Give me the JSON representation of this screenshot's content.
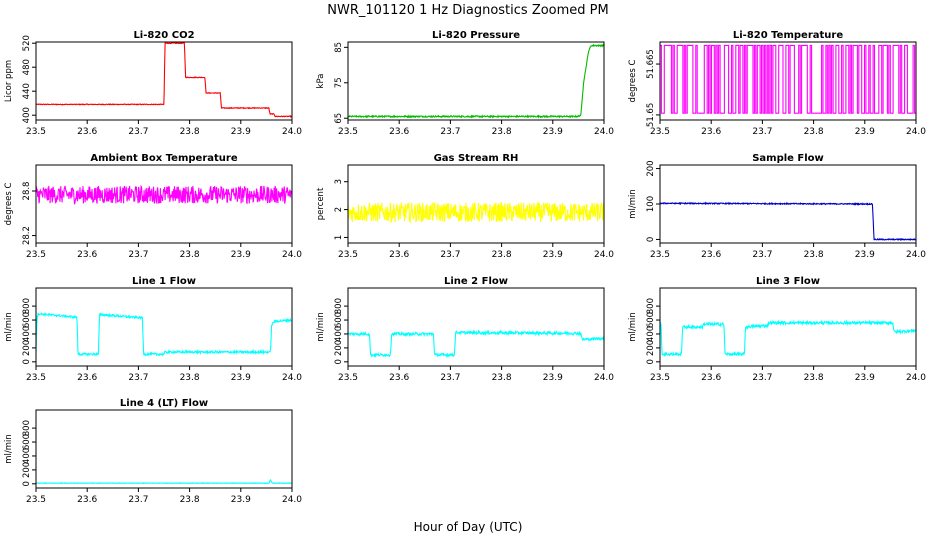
{
  "title": "NWR_101120  1 Hz Diagnostics Zoomed PM",
  "xlabel": "Hour of Day (UTC)",
  "chart_data": [
    {
      "type": "line",
      "title": "Li-820 CO2",
      "ylabel": "Licor ppm",
      "color": "#ff0000",
      "xlim": [
        23.5,
        24.0
      ],
      "ylim": [
        392,
        522
      ],
      "yticks": [
        400,
        440,
        480,
        520
      ],
      "xticks": [
        23.5,
        23.6,
        23.7,
        23.8,
        23.9,
        24.0
      ],
      "series": [
        {
          "noise": 0.6,
          "x": [
            23.5,
            23.75,
            23.752,
            23.79,
            23.792,
            23.83,
            23.832,
            23.86,
            23.862,
            23.955,
            23.957,
            23.965,
            23.967,
            24.0
          ],
          "y": [
            418,
            418,
            520,
            520,
            463,
            463,
            437,
            437,
            412,
            412,
            402,
            402,
            398,
            398
          ]
        }
      ]
    },
    {
      "type": "line",
      "title": "Li-820 Pressure",
      "ylabel": "kPa",
      "color": "#00bb00",
      "xlim": [
        23.5,
        24.0
      ],
      "ylim": [
        64.5,
        86.5
      ],
      "yticks": [
        65,
        75,
        85
      ],
      "xticks": [
        23.5,
        23.6,
        23.7,
        23.8,
        23.9,
        24.0
      ],
      "series": [
        {
          "noise": 0.2,
          "x": [
            23.5,
            23.95,
            23.955,
            23.96,
            23.97,
            23.975,
            24.0
          ],
          "y": [
            65.5,
            65.5,
            66,
            75,
            84,
            85.5,
            85.5
          ]
        }
      ]
    },
    {
      "type": "line",
      "title": "Li-820 Temperature",
      "ylabel": "degrees C",
      "color": "#ff00ff",
      "xlim": [
        23.5,
        24.0
      ],
      "ylim": [
        51.6485,
        51.6715
      ],
      "yticks": [
        51.65,
        51.665
      ],
      "xticks": [
        23.5,
        23.6,
        23.7,
        23.8,
        23.9,
        24.0
      ],
      "series": [
        {
          "pattern": "binary",
          "x": [
            23.5,
            24.0
          ],
          "y": [
            51.6505,
            51.6705
          ]
        }
      ]
    },
    {
      "type": "line",
      "title": "Ambient Box Temperature",
      "ylabel": "degrees C",
      "color": "#ff00ff",
      "xlim": [
        23.5,
        24.0
      ],
      "ylim": [
        28.1,
        29.15
      ],
      "yticks": [
        28.2,
        28.8
      ],
      "xticks": [
        23.5,
        23.6,
        23.7,
        23.8,
        23.9,
        24.0
      ],
      "series": [
        {
          "noise": 0.12,
          "x": [
            23.5,
            24.0
          ],
          "y": [
            28.75,
            28.75
          ]
        }
      ]
    },
    {
      "type": "line",
      "title": "Gas Stream RH",
      "ylabel": "percent",
      "color": "#ffff00",
      "xlim": [
        23.5,
        24.0
      ],
      "ylim": [
        0.8,
        3.6
      ],
      "yticks": [
        1.0,
        2.0,
        3.0
      ],
      "xticks": [
        23.5,
        23.6,
        23.7,
        23.8,
        23.9,
        24.0
      ],
      "series": [
        {
          "noise": 0.35,
          "x": [
            23.5,
            24.0
          ],
          "y": [
            1.9,
            1.9
          ]
        }
      ]
    },
    {
      "type": "line",
      "title": "Sample Flow",
      "ylabel": "ml/min",
      "color": "#0000cc",
      "xlim": [
        23.5,
        24.0
      ],
      "ylim": [
        -10,
        210
      ],
      "yticks": [
        0,
        100,
        200
      ],
      "xticks": [
        23.5,
        23.6,
        23.7,
        23.8,
        23.9,
        24.0
      ],
      "series": [
        {
          "noise": 1.5,
          "x": [
            23.5,
            23.915,
            23.918,
            24.0
          ],
          "y": [
            102,
            100,
            0,
            0
          ]
        }
      ]
    },
    {
      "type": "line",
      "title": "Line 1 Flow",
      "ylabel": "ml/min",
      "color": "#00ffff",
      "xlim": [
        23.5,
        24.0
      ],
      "ylim": [
        -60,
        1060
      ],
      "yticks": [
        0,
        200,
        400,
        600,
        800
      ],
      "xticks": [
        23.5,
        23.6,
        23.7,
        23.8,
        23.9,
        24.0
      ],
      "series": [
        {
          "noise": 15,
          "x": [
            23.5,
            23.502,
            23.505,
            23.58,
            23.582,
            23.622,
            23.624,
            23.708,
            23.71,
            23.75,
            23.752,
            23.958,
            23.96,
            23.965,
            24.0
          ],
          "y": [
            150,
            650,
            690,
            640,
            110,
            110,
            680,
            630,
            110,
            110,
            140,
            140,
            520,
            580,
            600
          ]
        }
      ]
    },
    {
      "type": "line",
      "title": "Line 2 Flow",
      "ylabel": "ml/min",
      "color": "#00ffff",
      "xlim": [
        23.5,
        24.0
      ],
      "ylim": [
        -60,
        1060
      ],
      "yticks": [
        0,
        200,
        400,
        600,
        800
      ],
      "xticks": [
        23.5,
        23.6,
        23.7,
        23.8,
        23.9,
        24.0
      ],
      "series": [
        {
          "noise": 20,
          "x": [
            23.5,
            23.542,
            23.544,
            23.583,
            23.585,
            23.667,
            23.669,
            23.708,
            23.71,
            23.955,
            23.957,
            24.0
          ],
          "y": [
            400,
            400,
            100,
            100,
            400,
            400,
            100,
            100,
            420,
            410,
            320,
            340
          ]
        }
      ]
    },
    {
      "type": "line",
      "title": "Line 3 Flow",
      "ylabel": "ml/min",
      "color": "#00ffff",
      "xlim": [
        23.5,
        24.0
      ],
      "ylim": [
        -60,
        1060
      ],
      "yticks": [
        0,
        200,
        400,
        600,
        800
      ],
      "xticks": [
        23.5,
        23.6,
        23.7,
        23.8,
        23.9,
        24.0
      ],
      "series": [
        {
          "noise": 20,
          "x": [
            23.5,
            23.502,
            23.504,
            23.542,
            23.544,
            23.583,
            23.585,
            23.625,
            23.627,
            23.665,
            23.667,
            23.71,
            23.712,
            23.955,
            23.957,
            24.0
          ],
          "y": [
            560,
            560,
            110,
            110,
            500,
            500,
            540,
            540,
            110,
            110,
            500,
            520,
            560,
            560,
            430,
            450
          ]
        }
      ]
    },
    {
      "type": "line",
      "title": "Line 4 (LT) Flow",
      "ylabel": "ml/min",
      "color": "#00ffff",
      "xlim": [
        23.5,
        24.0
      ],
      "ylim": [
        -60,
        1060
      ],
      "yticks": [
        0,
        200,
        400,
        600,
        800
      ],
      "xticks": [
        23.5,
        23.6,
        23.7,
        23.8,
        23.9,
        24.0
      ],
      "series": [
        {
          "noise": 3,
          "x": [
            23.5,
            23.955,
            23.958,
            23.96,
            23.963,
            24.0
          ],
          "y": [
            10,
            10,
            60,
            20,
            10,
            10
          ]
        }
      ]
    }
  ]
}
